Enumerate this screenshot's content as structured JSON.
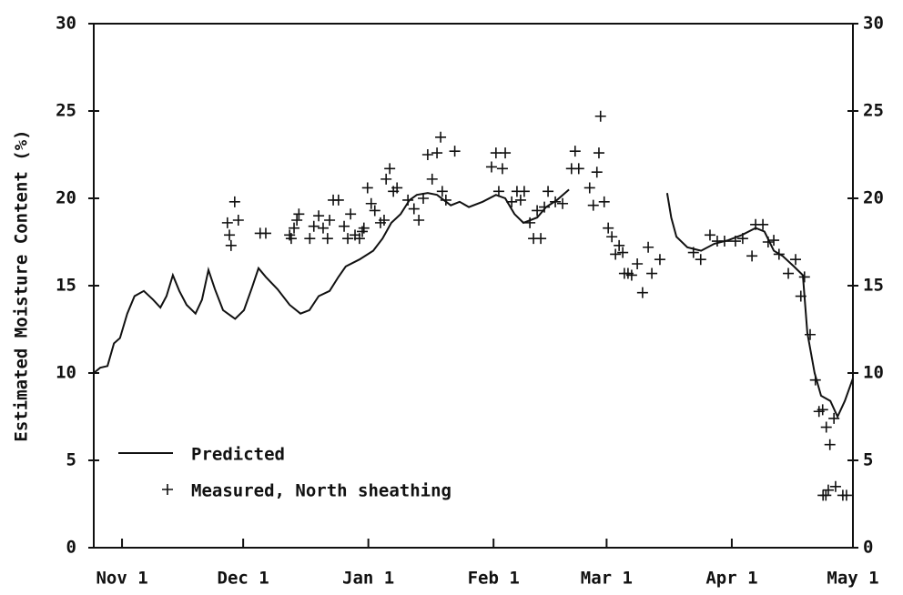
{
  "chart_data": {
    "type": "line",
    "y_label": "Estimated Moisture Content (%)",
    "xlim": [
      -7,
      181
    ],
    "xticks": [
      {
        "value": 0,
        "label": "Nov 1"
      },
      {
        "value": 30,
        "label": "Dec 1"
      },
      {
        "value": 61,
        "label": "Jan 1"
      },
      {
        "value": 92,
        "label": "Feb 1"
      },
      {
        "value": 120,
        "label": "Mar 1"
      },
      {
        "value": 151,
        "label": "Apr 1"
      },
      {
        "value": 181,
        "label": "May 1"
      }
    ],
    "ylim": [
      0,
      30
    ],
    "yticks": [
      0,
      5,
      10,
      15,
      20,
      25,
      30
    ],
    "y2lim": [
      0,
      30
    ],
    "y2ticks": [
      0,
      5,
      10,
      15,
      20,
      25,
      30
    ],
    "legend": "lower left",
    "series": [
      {
        "name": "Predicted",
        "type": "line",
        "color": "#000000",
        "x": [
          -7,
          -5.4,
          -3.6,
          -2,
          -0.5,
          1.3,
          3.1,
          5.4,
          7.7,
          9.5,
          11,
          12.6,
          14.2,
          16,
          18.2,
          19.8,
          21.4,
          23,
          25,
          28,
          30.2,
          32.2,
          33.8,
          35.6,
          38.5,
          41.5,
          44.2,
          46.4,
          48.7,
          51.4,
          53.6,
          55.4,
          58.8,
          62.2,
          64.5,
          66.7,
          69,
          71.2,
          73,
          75.7,
          78,
          81.4,
          83.6,
          85.9,
          89.3,
          92.6,
          94.9,
          97.2,
          99.4,
          102.8,
          105,
          107.7,
          110.7,
          122,
          135,
          136,
          137.3,
          140,
          143.4,
          146.7,
          150.1,
          153.5,
          156.9,
          159.1,
          161.4,
          163.6,
          166.4,
          168.6,
          169.7,
          171.5,
          173.1,
          175.4,
          177.2,
          179,
          181
        ],
        "values": [
          10.0,
          10.3,
          10.4,
          11.7,
          12.0,
          13.4,
          14.4,
          14.7,
          14.2,
          13.75,
          14.4,
          15.6,
          14.7,
          13.9,
          13.4,
          14.2,
          15.9,
          14.8,
          13.6,
          13.1,
          13.6,
          14.9,
          16.0,
          15.5,
          14.8,
          13.9,
          13.4,
          13.6,
          14.4,
          14.7,
          15.5,
          16.1,
          16.5,
          17.0,
          17.7,
          18.6,
          19.1,
          19.9,
          20.2,
          20.3,
          20.2,
          19.6,
          19.8,
          19.5,
          19.8,
          20.2,
          20.0,
          19.1,
          18.6,
          18.9,
          19.5,
          19.9,
          20.5,
          null,
          20.3,
          18.9,
          17.8,
          17.2,
          17.0,
          17.4,
          17.6,
          17.9,
          18.3,
          18.1,
          17.0,
          16.7,
          16.1,
          15.6,
          12.3,
          10.0,
          8.7,
          8.4,
          7.5,
          8.4,
          9.7
        ]
      },
      {
        "name": "Measured, North sheathing",
        "type": "scatter",
        "color": "#000000",
        "x": [
          26.1,
          26.6,
          27.0,
          27.9,
          28.8,
          34.2,
          35.6,
          41.5,
          41.9,
          42.6,
          43.3,
          43.8,
          46.5,
          47.5,
          48.7,
          49.8,
          50.9,
          51.4,
          52.3,
          53.6,
          55.0,
          55.9,
          56.6,
          57.7,
          58.8,
          59.5,
          59.9,
          60.8,
          61.7,
          62.6,
          64.0,
          64.9,
          65.4,
          66.3,
          67.2,
          68.1,
          70.8,
          72.3,
          73.5,
          74.6,
          75.7,
          76.8,
          78.0,
          78.9,
          79.3,
          80.2,
          82.4,
          91.5,
          92.6,
          93.3,
          94.2,
          94.9,
          96.5,
          97.8,
          98.7,
          99.6,
          101.0,
          101.9,
          102.8,
          103.7,
          104.6,
          105.5,
          107.3,
          109.1,
          111.3,
          112.2,
          113.1,
          115.8,
          116.7,
          117.6,
          118.1,
          118.5,
          119.4,
          120.4,
          121.3,
          122.2,
          123.1,
          124.0,
          124.4,
          125.3,
          126.2,
          127.6,
          128.9,
          130.3,
          131.2,
          133.2,
          141.5,
          143.3,
          145.6,
          147.4,
          149.2,
          151.9,
          153.7,
          156.0,
          156.9,
          158.7,
          160.0,
          161.4,
          162.7,
          165.0,
          166.8,
          168.1,
          169.0,
          170.4,
          171.7,
          172.6,
          173.5,
          174.4,
          175.3,
          176.3,
          173.6,
          174.3,
          174.9,
          176.7,
          178.5,
          179.4
        ],
        "values": [
          18.6,
          17.9,
          17.3,
          19.8,
          18.75,
          18.0,
          18.0,
          17.9,
          17.7,
          18.3,
          18.75,
          19.1,
          17.7,
          18.4,
          19.0,
          18.3,
          17.7,
          18.75,
          19.9,
          19.9,
          18.4,
          17.7,
          19.1,
          17.9,
          17.7,
          18.1,
          18.3,
          20.6,
          19.7,
          19.3,
          18.6,
          18.75,
          21.1,
          21.7,
          20.4,
          20.6,
          19.9,
          19.4,
          18.75,
          20.0,
          22.5,
          21.1,
          22.6,
          23.5,
          20.4,
          19.9,
          22.7,
          21.8,
          22.6,
          20.4,
          21.7,
          22.6,
          19.8,
          20.4,
          19.9,
          20.4,
          18.6,
          17.7,
          19.3,
          17.7,
          19.5,
          20.4,
          19.8,
          19.7,
          21.7,
          22.7,
          21.7,
          20.6,
          19.6,
          21.5,
          22.6,
          24.7,
          19.8,
          18.3,
          17.8,
          16.8,
          17.3,
          16.9,
          15.7,
          15.7,
          15.6,
          16.25,
          14.6,
          17.2,
          15.7,
          16.5,
          16.9,
          16.5,
          17.9,
          17.55,
          17.55,
          17.55,
          17.7,
          16.7,
          18.5,
          18.5,
          17.5,
          17.6,
          16.8,
          15.7,
          16.5,
          14.4,
          15.5,
          12.2,
          9.6,
          7.8,
          7.9,
          6.9,
          5.9,
          7.4,
          3.0,
          3.0,
          3.3,
          3.5,
          3.0,
          3.0
        ]
      }
    ]
  }
}
